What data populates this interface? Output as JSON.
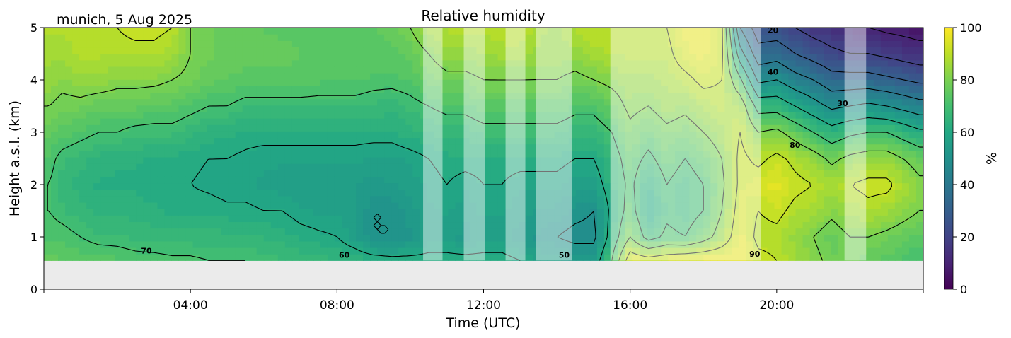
{
  "figure": {
    "location_date": "munich, 5 Aug 2025"
  },
  "chart_data": {
    "type": "heatmap",
    "title": "Relative humidity",
    "xlabel": "Time (UTC)",
    "ylabel": "Height a.s.l. (km)",
    "xlim_hours": [
      0,
      24
    ],
    "ylim_km": [
      0,
      5
    ],
    "x_ticks": [
      {
        "hour": 4,
        "label": "04:00"
      },
      {
        "hour": 8,
        "label": "08:00"
      },
      {
        "hour": 12,
        "label": "12:00"
      },
      {
        "hour": 16,
        "label": "16:00"
      },
      {
        "hour": 20,
        "label": "20:00"
      }
    ],
    "y_ticks": [
      {
        "km": 0,
        "label": "0"
      },
      {
        "km": 1,
        "label": "1"
      },
      {
        "km": 2,
        "label": "2"
      },
      {
        "km": 3,
        "label": "3"
      },
      {
        "km": 4,
        "label": "4"
      },
      {
        "km": 5,
        "label": "5"
      }
    ],
    "data_bottom_km": 0.55,
    "colorbar": {
      "label": "%",
      "colormap": "viridis",
      "range": [
        0,
        100
      ],
      "ticks": [
        "0",
        "20",
        "40",
        "60",
        "80",
        "100"
      ]
    },
    "grid_times_hours": [
      0.15,
      0.5,
      1,
      1.5,
      2,
      2.5,
      3,
      3.5,
      4,
      4.5,
      5,
      5.5,
      6,
      6.5,
      7,
      7.5,
      8,
      8.5,
      9,
      9.5,
      10,
      10.5,
      11,
      11.5,
      12,
      12.5,
      13,
      13.5,
      14,
      14.5,
      15,
      15.5,
      16,
      16.5,
      17,
      17.5,
      18,
      18.5,
      19,
      19.5,
      20,
      20.5,
      21,
      21.5,
      22,
      22.5,
      23,
      23.9
    ],
    "grid_heights_km": [
      0.55,
      1.0,
      1.5,
      2.0,
      2.5,
      3.0,
      3.5,
      4.0,
      4.5,
      5.0
    ],
    "rh_percent": [
      [
        76,
        72,
        70,
        70,
        72,
        76,
        80,
        84,
        86,
        88
      ],
      [
        75,
        72,
        68,
        66,
        68,
        74,
        78,
        82,
        86,
        88
      ],
      [
        74,
        70,
        66,
        64,
        66,
        72,
        78,
        84,
        88,
        90
      ],
      [
        74,
        68,
        64,
        62,
        64,
        70,
        76,
        84,
        88,
        90
      ],
      [
        73,
        68,
        64,
        62,
        63,
        70,
        76,
        82,
        88,
        90
      ],
      [
        72,
        67,
        64,
        62,
        63,
        68,
        76,
        82,
        88,
        92
      ],
      [
        72,
        66,
        63,
        61,
        62,
        68,
        74,
        82,
        88,
        92
      ],
      [
        71,
        66,
        62,
        60,
        62,
        68,
        74,
        80,
        86,
        90
      ],
      [
        71,
        66,
        62,
        60,
        61,
        66,
        72,
        78,
        80,
        80
      ],
      [
        70,
        66,
        62,
        59,
        60,
        64,
        70,
        76,
        78,
        78
      ],
      [
        70,
        66,
        61,
        58,
        60,
        63,
        70,
        75,
        76,
        76
      ],
      [
        70,
        65,
        61,
        58,
        59,
        62,
        68,
        74,
        76,
        76
      ],
      [
        69,
        65,
        60,
        57,
        58,
        62,
        68,
        74,
        76,
        75
      ],
      [
        68,
        64,
        60,
        56,
        58,
        62,
        68,
        74,
        76,
        74
      ],
      [
        67,
        62,
        58,
        55,
        58,
        62,
        68,
        74,
        75,
        74
      ],
      [
        66,
        61,
        57,
        55,
        58,
        62,
        68,
        73,
        75,
        74
      ],
      [
        65,
        60,
        57,
        55,
        58,
        62,
        68,
        73,
        75,
        74
      ],
      [
        64,
        56,
        56,
        55,
        58,
        62,
        68,
        73,
        74,
        75
      ],
      [
        63,
        50,
        50,
        54,
        57,
        62,
        67,
        72,
        74,
        75
      ],
      [
        62,
        50,
        50,
        55,
        57,
        62,
        66,
        72,
        74,
        76
      ],
      [
        62,
        52,
        54,
        56,
        58,
        64,
        68,
        73,
        76,
        80
      ],
      [
        62,
        56,
        57,
        58,
        60,
        65,
        70,
        76,
        80,
        86
      ],
      [
        62,
        56,
        58,
        60,
        62,
        66,
        72,
        78,
        84,
        88
      ],
      [
        62,
        54,
        56,
        58,
        62,
        66,
        72,
        78,
        84,
        88
      ],
      [
        62,
        56,
        58,
        60,
        62,
        68,
        74,
        80,
        85,
        88
      ],
      [
        62,
        56,
        58,
        60,
        62,
        68,
        74,
        80,
        86,
        90
      ],
      [
        60,
        54,
        56,
        58,
        62,
        68,
        74,
        80,
        86,
        90
      ],
      [
        58,
        52,
        55,
        58,
        62,
        68,
        74,
        80,
        84,
        86
      ],
      [
        56,
        50,
        54,
        58,
        62,
        68,
        74,
        80,
        84,
        84
      ],
      [
        55,
        48,
        52,
        56,
        60,
        66,
        72,
        78,
        84,
        88
      ],
      [
        55,
        48,
        50,
        56,
        60,
        66,
        72,
        80,
        86,
        90
      ],
      [
        70,
        64,
        62,
        64,
        66,
        70,
        76,
        82,
        88,
        90
      ],
      [
        96,
        80,
        74,
        72,
        74,
        78,
        82,
        84,
        88,
        90
      ],
      [
        94,
        66,
        60,
        62,
        68,
        74,
        80,
        84,
        88,
        90
      ],
      [
        96,
        72,
        68,
        70,
        74,
        78,
        84,
        86,
        88,
        90
      ],
      [
        98,
        70,
        66,
        66,
        70,
        76,
        82,
        88,
        94,
        96
      ],
      [
        98,
        76,
        70,
        70,
        74,
        80,
        86,
        92,
        96,
        98
      ],
      [
        98,
        84,
        80,
        78,
        80,
        84,
        88,
        90,
        92,
        92
      ],
      [
        98,
        96,
        94,
        92,
        92,
        90,
        86,
        72,
        54,
        40
      ],
      [
        92,
        88,
        90,
        94,
        88,
        80,
        66,
        48,
        34,
        24
      ],
      [
        90,
        88,
        92,
        96,
        92,
        82,
        66,
        50,
        36,
        24
      ],
      [
        86,
        84,
        88,
        92,
        88,
        76,
        60,
        44,
        30,
        20
      ],
      [
        82,
        80,
        86,
        90,
        84,
        70,
        54,
        40,
        26,
        16
      ],
      [
        78,
        76,
        82,
        86,
        78,
        64,
        48,
        34,
        22,
        14
      ],
      [
        78,
        80,
        86,
        90,
        82,
        68,
        50,
        34,
        20,
        12
      ],
      [
        76,
        80,
        88,
        92,
        84,
        70,
        52,
        34,
        20,
        10
      ],
      [
        74,
        78,
        86,
        92,
        84,
        70,
        50,
        32,
        18,
        8
      ],
      [
        70,
        74,
        80,
        82,
        76,
        62,
        44,
        28,
        14,
        6
      ]
    ],
    "masked_intervals_hours": [
      [
        10.35,
        10.88
      ],
      [
        11.46,
        12.04
      ],
      [
        12.6,
        13.14
      ],
      [
        13.43,
        14.42
      ],
      [
        15.46,
        19.56
      ],
      [
        21.85,
        22.44
      ]
    ],
    "contour_levels_percent": [
      10,
      20,
      30,
      40,
      50,
      60,
      70,
      80,
      90
    ],
    "contour_labels": [
      {
        "text": "70",
        "hour": 2.8,
        "km": 0.68
      },
      {
        "text": "60",
        "hour": 8.2,
        "km": 0.6
      },
      {
        "text": "50",
        "hour": 14.2,
        "km": 0.6
      },
      {
        "text": "90",
        "hour": 19.4,
        "km": 0.62
      },
      {
        "text": "80",
        "hour": 20.5,
        "km": 2.7
      },
      {
        "text": "40",
        "hour": 19.9,
        "km": 4.1
      },
      {
        "text": "30",
        "hour": 21.8,
        "km": 3.5
      },
      {
        "text": "20",
        "hour": 19.9,
        "km": 4.9
      }
    ]
  }
}
